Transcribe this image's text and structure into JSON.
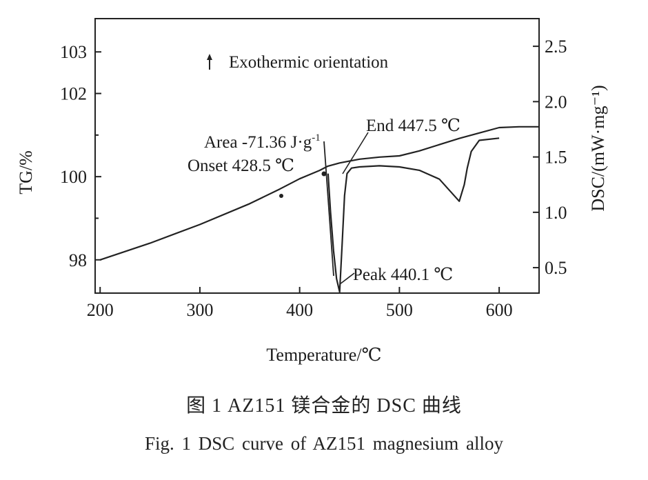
{
  "chart_data": {
    "type": "line",
    "xlabel": "Temperature/℃",
    "ylabel_left": "TG/%",
    "ylabel_right": "DSC/(mW·mg⁻¹)",
    "xlim": [
      195,
      640
    ],
    "ylim_left": [
      97.2,
      103.8
    ],
    "ylim_right": [
      0.27,
      2.75
    ],
    "x_ticks": [
      "200",
      "300",
      "400",
      "500",
      "600"
    ],
    "y_left_ticks": [
      "98",
      "100",
      "102",
      "103"
    ],
    "y_right_ticks": [
      "0.5",
      "1.0",
      "1.5",
      "2.0",
      "2.5"
    ],
    "x_tick_values": [
      200,
      300,
      400,
      500,
      600
    ],
    "y_left_tick_values": [
      98,
      100,
      102,
      103
    ],
    "y_right_tick_values": [
      0.5,
      1.0,
      1.5,
      2.0,
      2.5
    ],
    "series": [
      {
        "axis": "left",
        "x": [
          200,
          250,
          300,
          350,
          380,
          400,
          420,
          428,
          440,
          460,
          480,
          500,
          520,
          540,
          560,
          580,
          600,
          620,
          640
        ],
        "y": [
          98.0,
          98.4,
          98.85,
          99.35,
          99.7,
          99.95,
          100.15,
          100.25,
          100.33,
          100.42,
          100.47,
          100.5,
          100.62,
          100.77,
          100.92,
          101.05,
          101.18,
          101.2,
          101.2
        ]
      },
      {
        "axis": "right",
        "x": [
          428.5,
          431,
          434,
          437,
          440.1,
          442.5,
          445,
          447.5,
          452,
          460,
          480,
          500,
          520,
          540,
          550,
          560,
          565,
          568,
          572,
          580,
          600
        ],
        "y": [
          1.35,
          1.0,
          0.65,
          0.4,
          0.28,
          0.7,
          1.15,
          1.35,
          1.4,
          1.41,
          1.42,
          1.41,
          1.38,
          1.3,
          1.2,
          1.1,
          1.25,
          1.4,
          1.55,
          1.65,
          1.67
        ]
      }
    ],
    "annotations": {
      "exothermic": "Exothermic orientation",
      "area": "Area -71.36 J·g",
      "area_sup": "-1",
      "end": "End 447.5 ℃",
      "onset": "Onset 428.5 ℃",
      "peak": "Peak 440.1 ℃"
    },
    "grid": false,
    "legend": "none"
  },
  "caption": {
    "cn": "图 1 AZ151 镁合金的 DSC 曲线",
    "en": "Fig. 1 DSC curve of AZ151 magnesium alloy"
  }
}
